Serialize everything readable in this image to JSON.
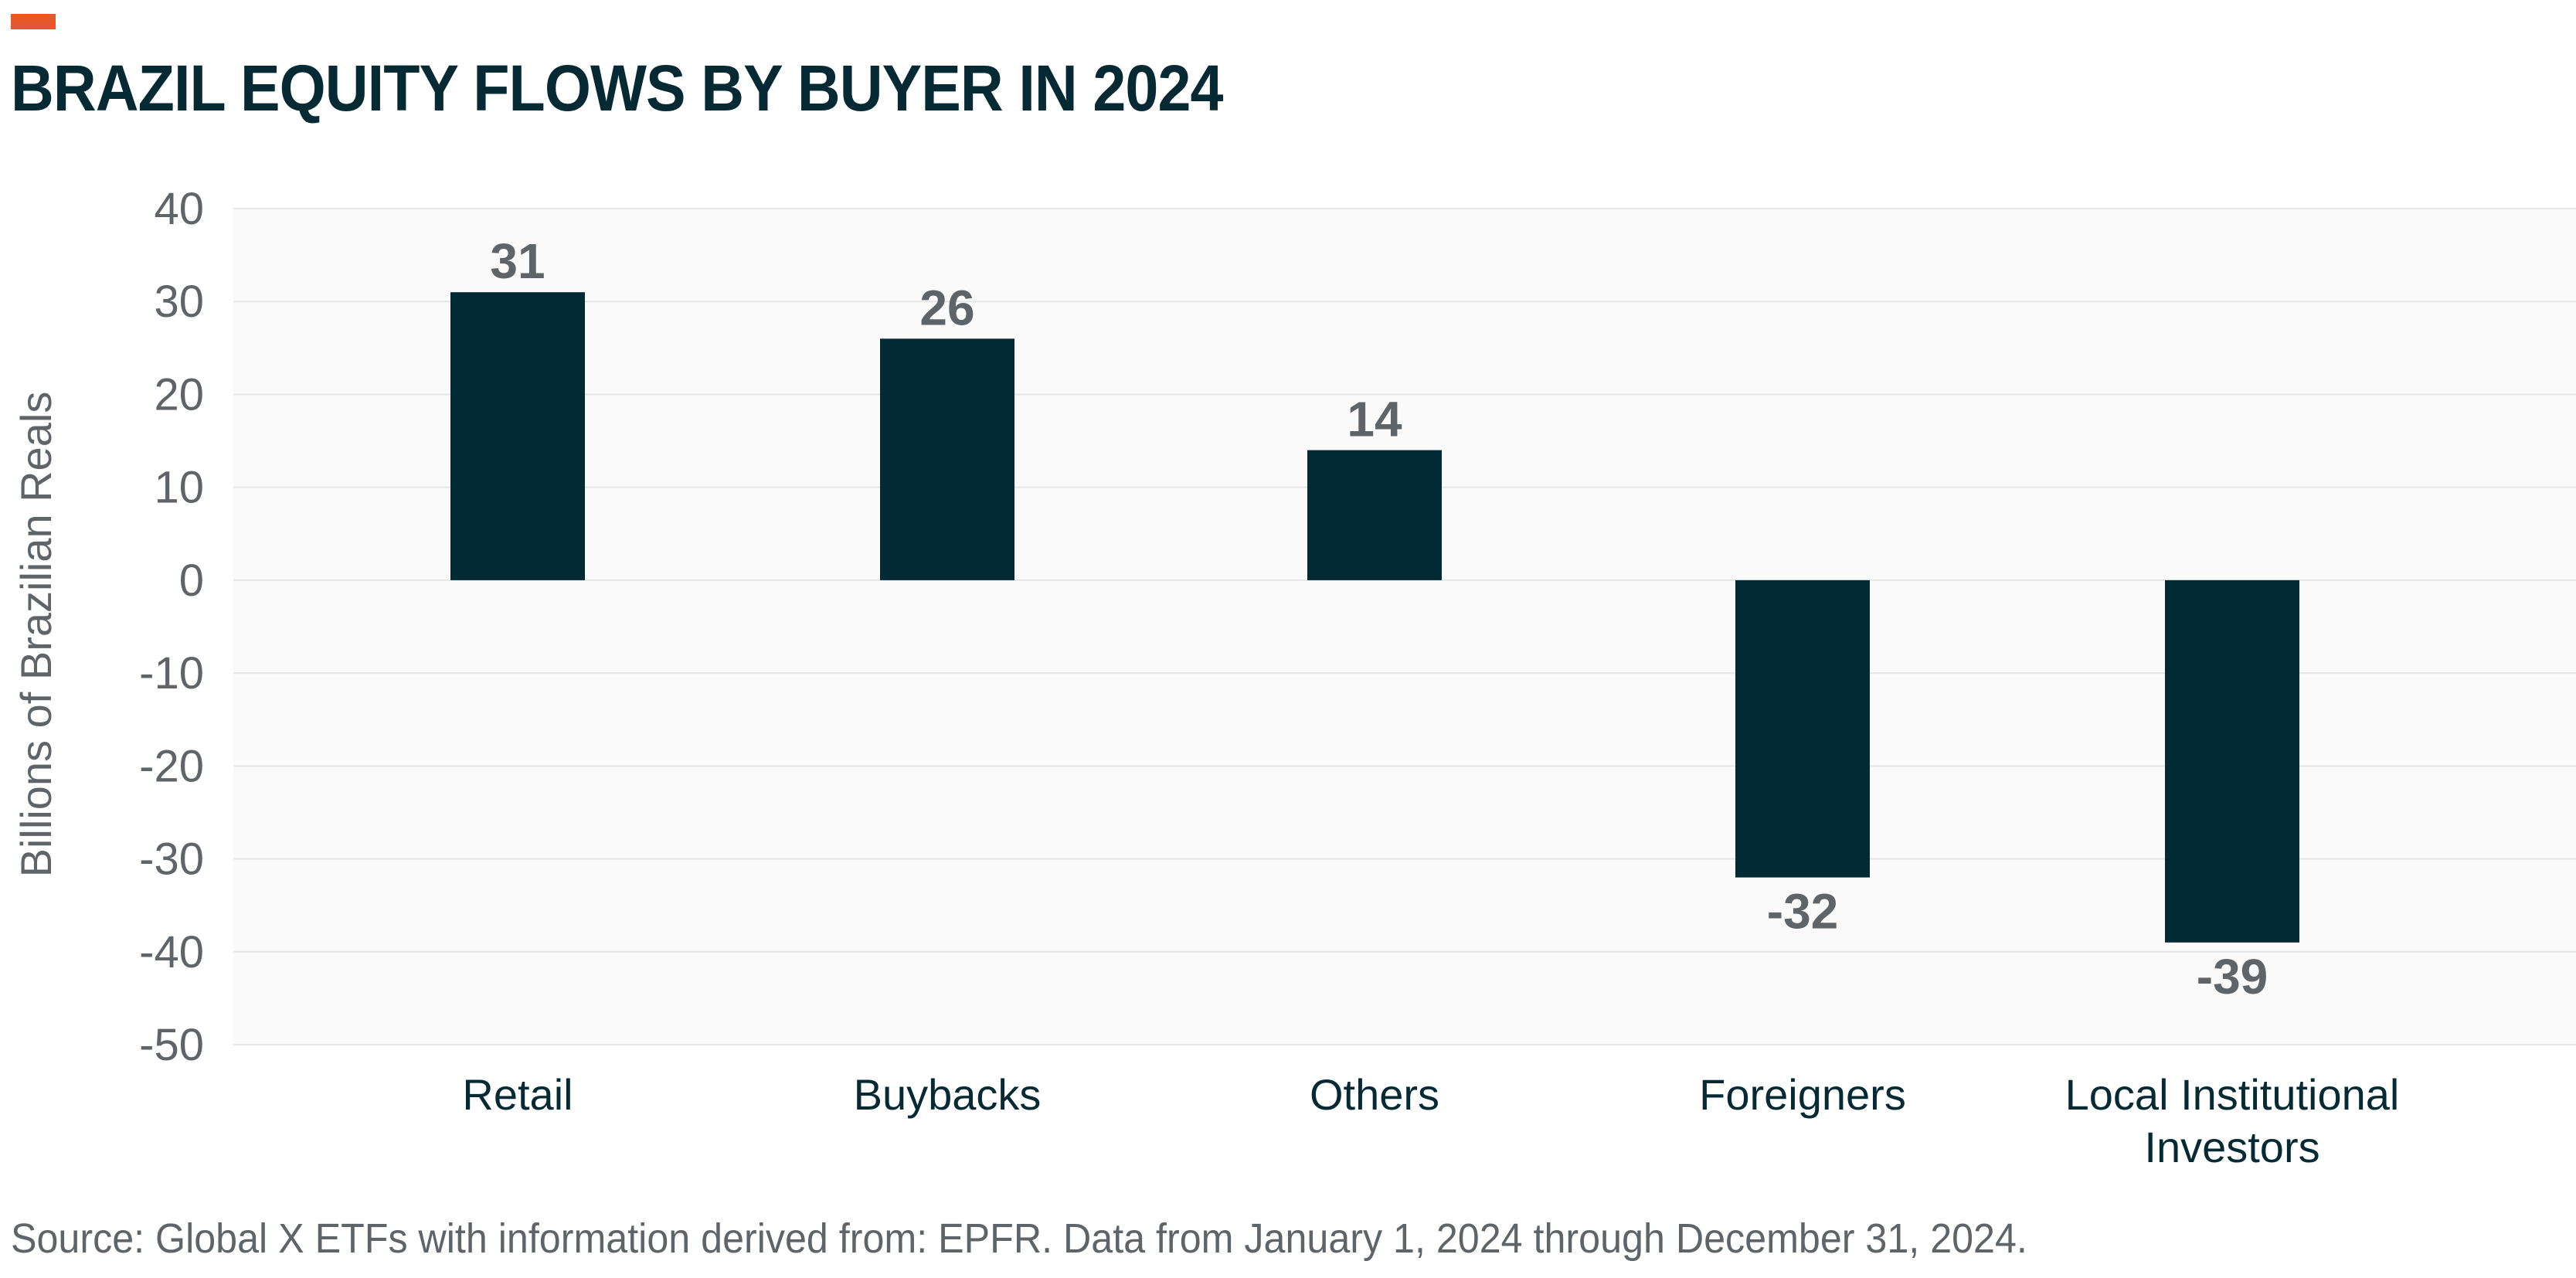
{
  "header": {
    "title": "BRAZIL EQUITY FLOWS BY BUYER IN 2024"
  },
  "footer": {
    "source": "Source: Global X ETFs with information derived from: EPFR. Data from January 1, 2024 through December 31, 2024."
  },
  "colors": {
    "accent": "#e8572a",
    "bar": "#022a35",
    "title": "#062a33",
    "plot_background": "#f9faf9",
    "gridline": "#e4e7e5",
    "muted_text": "#5f6468"
  },
  "chart_data": {
    "type": "bar",
    "title": "BRAZIL EQUITY FLOWS BY BUYER IN 2024",
    "xlabel": "",
    "ylabel": "Billions of Brazilian Reals",
    "categories": [
      "Retail",
      "Buybacks",
      "Others",
      "Foreigners",
      "Local Institutional Investors"
    ],
    "category_lines": [
      [
        "Retail"
      ],
      [
        "Buybacks"
      ],
      [
        "Others"
      ],
      [
        "Foreigners"
      ],
      [
        "Local Institutional",
        "Investors"
      ]
    ],
    "values": [
      31,
      26,
      14,
      -32,
      -39
    ],
    "data_labels": [
      "31",
      "26",
      "14",
      "-32",
      "-39"
    ],
    "ylim": [
      -50,
      40
    ],
    "yticks": [
      40,
      30,
      20,
      10,
      0,
      -10,
      -20,
      -30,
      -40,
      -50
    ],
    "grid": true,
    "legend": "none"
  }
}
